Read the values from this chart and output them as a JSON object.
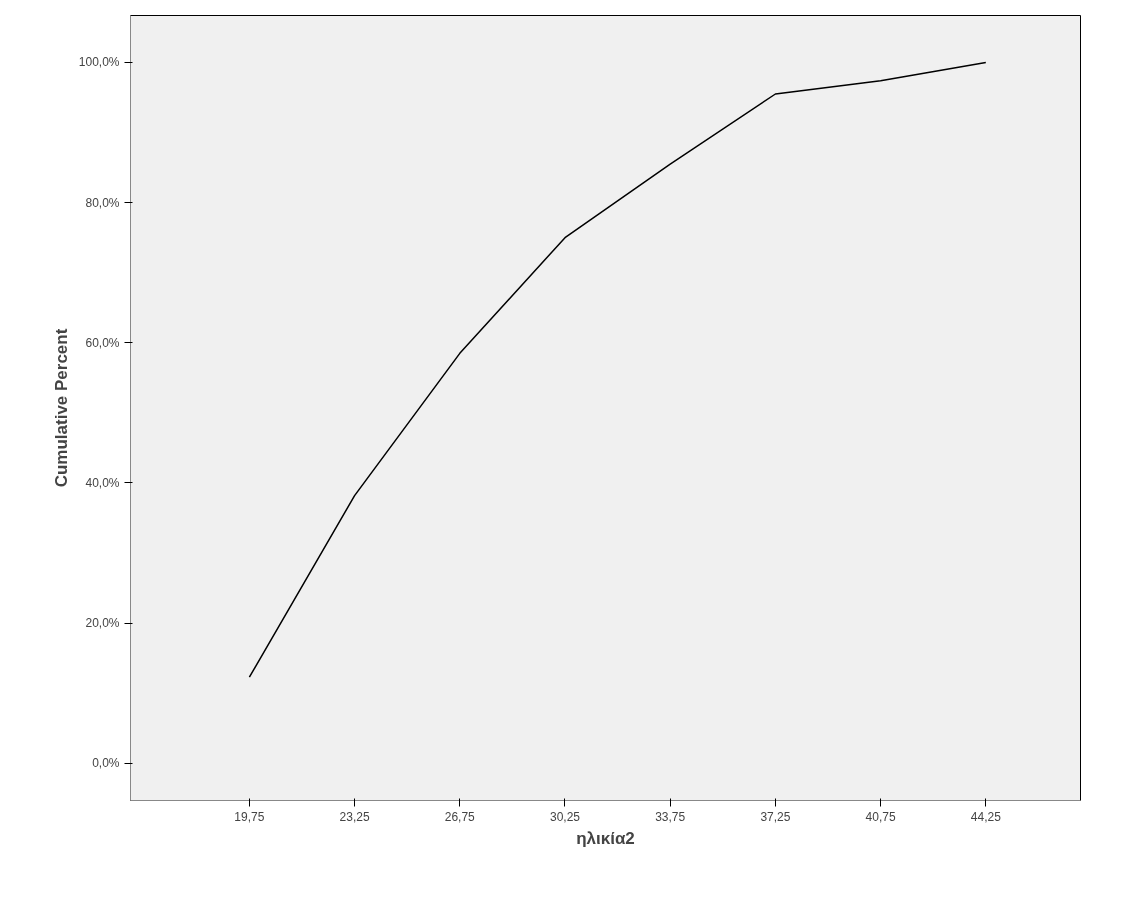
{
  "chart_data": {
    "type": "line",
    "xlabel": "ηλικία2",
    "ylabel": "Cumulative Percent",
    "categories": [
      "19,75",
      "23,25",
      "26,75",
      "30,25",
      "33,75",
      "37,25",
      "40,75",
      "44,25"
    ],
    "series": [
      {
        "color": "#000000",
        "values": [
          12.3,
          38.2,
          58.5,
          75.0,
          85.5,
          95.5,
          97.4,
          100.0
        ]
      }
    ],
    "ylim": [
      -5.3,
      106.7
    ],
    "yticks": [
      {
        "value": 0,
        "label": "0,0%"
      },
      {
        "value": 20,
        "label": "20,0%"
      },
      {
        "value": 40,
        "label": "40,0%"
      },
      {
        "value": 60,
        "label": "60,0%"
      },
      {
        "value": 80,
        "label": "80,0%"
      },
      {
        "value": 100,
        "label": "100,0%"
      }
    ],
    "grid": false,
    "marker": "none",
    "line_style": "solid"
  }
}
